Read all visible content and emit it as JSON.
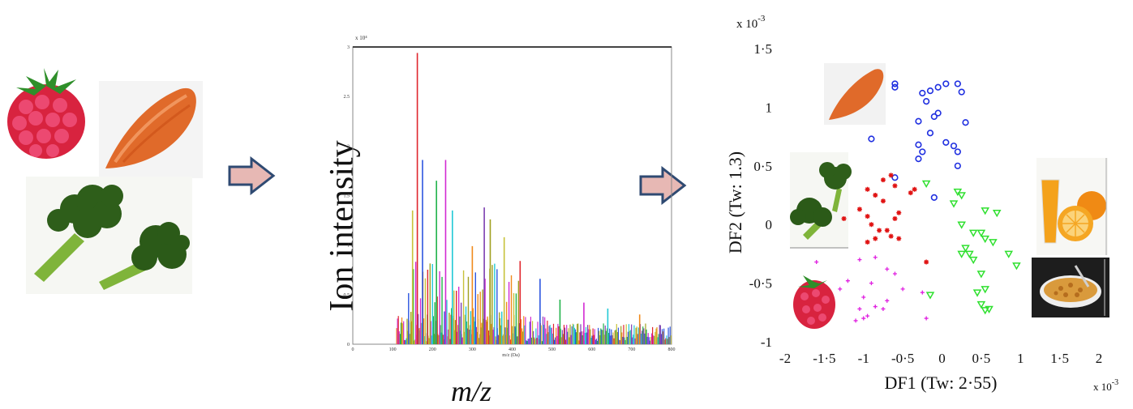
{
  "arrows": {
    "fill": "#e7b8b4",
    "stroke": "#2f4a72"
  },
  "spectrum": {
    "y_label": "Ion intensity",
    "x_label": "m/z",
    "inner_x_label": "m/z (Da)",
    "scale_note": "x 10⁴",
    "y_ticks": [
      "0",
      "0.5",
      "1",
      "1.5",
      "2",
      "2.5",
      "3"
    ],
    "x_ticks": [
      "0",
      "100",
      "200",
      "300",
      "400",
      "500",
      "600",
      "700",
      "800"
    ]
  },
  "chart_data": {
    "type": "scatter",
    "xlabel": "DF1 (Tw: 2·55)",
    "ylabel": "DF2 (Tw: 1.3)",
    "x_scale_note": "x 10",
    "x_scale_exp": "-3",
    "y_scale_note": "x 10",
    "y_scale_exp": "-3",
    "xlim": [
      -2,
      2
    ],
    "ylim": [
      -1,
      1.5
    ],
    "x_ticks": [
      {
        "v": -2,
        "label": "-2"
      },
      {
        "v": -1.5,
        "label": "-1·5"
      },
      {
        "v": -1,
        "label": "-1"
      },
      {
        "v": -0.5,
        "label": "-0·5"
      },
      {
        "v": 0,
        "label": "0"
      },
      {
        "v": 0.5,
        "label": "0·5"
      },
      {
        "v": 1,
        "label": "1"
      },
      {
        "v": 1.5,
        "label": "1·5"
      },
      {
        "v": 2,
        "label": "2"
      }
    ],
    "y_ticks": [
      {
        "v": 1.5,
        "label": "1·5"
      },
      {
        "v": 1,
        "label": "1"
      },
      {
        "v": 0.5,
        "label": "0·5"
      },
      {
        "v": 0,
        "label": "0"
      },
      {
        "v": -0.5,
        "label": "-0·5"
      },
      {
        "v": -1,
        "label": "-1"
      }
    ],
    "series": [
      {
        "marker": "circle",
        "color": "#1f2fe0",
        "points": [
          [
            -0.6,
            1.2
          ],
          [
            -0.6,
            1.17
          ],
          [
            -0.25,
            1.12
          ],
          [
            -0.15,
            1.14
          ],
          [
            -0.05,
            1.17
          ],
          [
            0.05,
            1.2
          ],
          [
            0.2,
            1.2
          ],
          [
            0.25,
            1.13
          ],
          [
            -0.2,
            1.05
          ],
          [
            -0.05,
            0.95
          ],
          [
            -0.1,
            0.92
          ],
          [
            -0.3,
            0.88
          ],
          [
            0.3,
            0.87
          ],
          [
            -0.9,
            0.73
          ],
          [
            -0.15,
            0.78
          ],
          [
            -0.3,
            0.68
          ],
          [
            0.05,
            0.7
          ],
          [
            0.15,
            0.67
          ],
          [
            -0.25,
            0.62
          ],
          [
            0.2,
            0.62
          ],
          [
            -0.3,
            0.56
          ],
          [
            0.2,
            0.5
          ],
          [
            -0.6,
            0.4
          ],
          [
            -0.1,
            0.23
          ]
        ]
      },
      {
        "marker": "star",
        "color": "#e01212",
        "points": [
          [
            -0.65,
            0.42
          ],
          [
            -0.75,
            0.38
          ],
          [
            -0.6,
            0.33
          ],
          [
            -0.95,
            0.3
          ],
          [
            -0.85,
            0.25
          ],
          [
            -0.4,
            0.27
          ],
          [
            -0.35,
            0.3
          ],
          [
            -0.75,
            0.2
          ],
          [
            -1.05,
            0.13
          ],
          [
            -1.25,
            0.05
          ],
          [
            -0.95,
            0.07
          ],
          [
            -0.55,
            0.1
          ],
          [
            -0.6,
            0.05
          ],
          [
            -0.9,
            0.0
          ],
          [
            -0.7,
            -0.05
          ],
          [
            -0.65,
            -0.1
          ],
          [
            -0.55,
            -0.12
          ],
          [
            -0.85,
            -0.12
          ],
          [
            -0.8,
            -0.05
          ],
          [
            -0.95,
            -0.15
          ],
          [
            -0.2,
            -0.32
          ]
        ]
      },
      {
        "marker": "triangle-down",
        "color": "#2fe02f",
        "points": [
          [
            -0.2,
            0.35
          ],
          [
            0.2,
            0.28
          ],
          [
            0.25,
            0.25
          ],
          [
            0.15,
            0.18
          ],
          [
            0.55,
            0.12
          ],
          [
            0.7,
            0.1
          ],
          [
            0.25,
            0.0
          ],
          [
            0.4,
            -0.07
          ],
          [
            0.5,
            -0.07
          ],
          [
            0.55,
            -0.12
          ],
          [
            0.65,
            -0.15
          ],
          [
            0.3,
            -0.2
          ],
          [
            0.35,
            -0.25
          ],
          [
            0.25,
            -0.25
          ],
          [
            0.85,
            -0.25
          ],
          [
            0.4,
            -0.3
          ],
          [
            0.95,
            -0.35
          ],
          [
            0.5,
            -0.42
          ],
          [
            0.55,
            -0.55
          ],
          [
            -0.15,
            -0.6
          ],
          [
            0.45,
            -0.58
          ],
          [
            0.5,
            -0.68
          ],
          [
            0.6,
            -0.72
          ],
          [
            0.55,
            -0.73
          ]
        ]
      },
      {
        "marker": "plus",
        "color": "#e020e0",
        "points": [
          [
            -1.6,
            -0.32
          ],
          [
            -1.05,
            -0.3
          ],
          [
            -0.85,
            -0.28
          ],
          [
            -0.7,
            -0.38
          ],
          [
            -0.6,
            -0.42
          ],
          [
            -1.2,
            -0.48
          ],
          [
            -1.3,
            -0.55
          ],
          [
            -0.9,
            -0.5
          ],
          [
            -0.5,
            -0.55
          ],
          [
            -1.0,
            -0.62
          ],
          [
            -0.7,
            -0.65
          ],
          [
            -0.25,
            -0.58
          ],
          [
            -1.05,
            -0.72
          ],
          [
            -0.85,
            -0.7
          ],
          [
            -0.75,
            -0.72
          ],
          [
            -1.1,
            -0.82
          ],
          [
            -1.0,
            -0.8
          ],
          [
            -0.95,
            -0.78
          ],
          [
            -0.2,
            -0.8
          ]
        ]
      }
    ]
  }
}
